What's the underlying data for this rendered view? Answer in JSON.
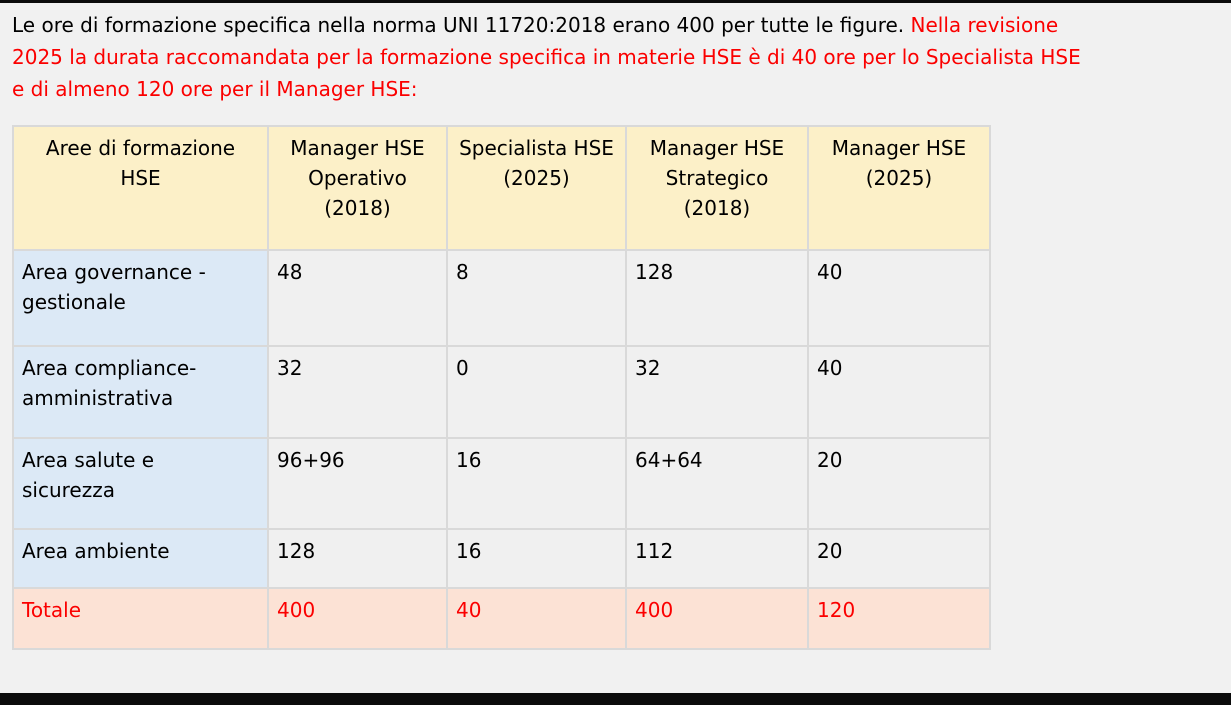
{
  "intro": {
    "black_text": "Le ore di formazione specifica nella norma UNI 11720:2018 erano 400 per tutte le figure. ",
    "red_text": "Nella revisione\n2025 la durata raccomandata per la formazione specifica in materie HSE è di 40 ore per lo Specialista HSE\ne di almeno 120 ore per il Manager HSE:"
  },
  "table": {
    "headers": [
      "Aree di formazione\nHSE",
      "Manager HSE\nOperativo\n(2018)",
      "Specialista HSE\n(2025)",
      "Manager HSE\nStrategico\n(2018)",
      "Manager HSE\n(2025)"
    ],
    "rows": [
      {
        "label": "Area governance -\ngestionale",
        "values": [
          "48",
          "8",
          "128",
          "40"
        ]
      },
      {
        "label": "Area compliance-\namministrativa",
        "values": [
          "32",
          "0",
          "32",
          "40"
        ]
      },
      {
        "label": "Area salute e\nsicurezza",
        "values": [
          "96+96",
          "16",
          "64+64",
          "20"
        ]
      },
      {
        "label": "Area ambiente",
        "values": [
          "128",
          "16",
          "112",
          "20"
        ]
      }
    ],
    "total_row": {
      "label": "Totale",
      "values": [
        "400",
        "40",
        "400",
        "120"
      ]
    }
  },
  "colors": {
    "page_background": "#f1f1f1",
    "header_cell": "#fcf0c8",
    "label_cell": "#dce9f6",
    "value_cell": "#f0f0f0",
    "total_cell": "#fce2d5",
    "accent_red": "#fb0000",
    "grid_border": "#d9d9d9",
    "edge_bars": "#0b0b0b"
  }
}
